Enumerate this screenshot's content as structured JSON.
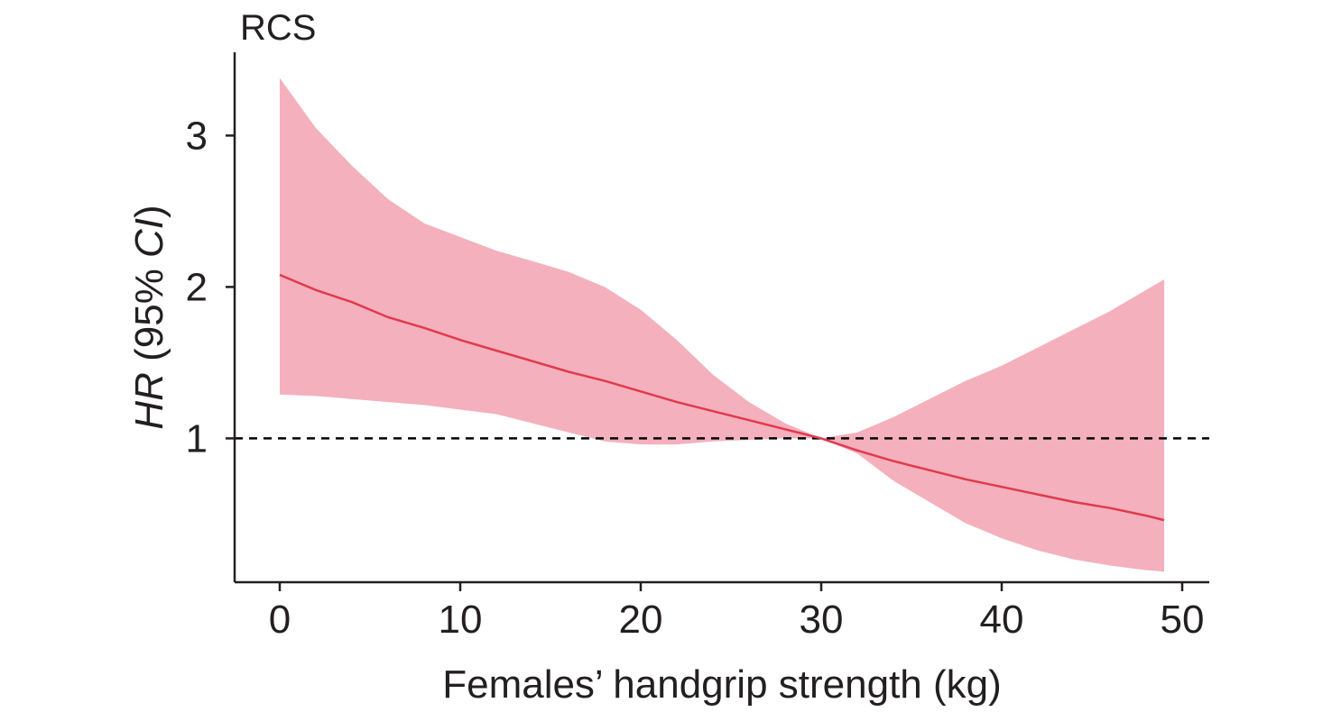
{
  "chart_data": {
    "type": "line",
    "panel_label": "RCS",
    "xlabel": "Females’ handgrip strength (kg)",
    "ylabel": {
      "italic_part": "HR",
      "mid_part": " (95% ",
      "italic_part2": "CI",
      "end_part": ")"
    },
    "xlim": [
      -2.5,
      51.5
    ],
    "ylim": [
      0.05,
      3.55
    ],
    "xticks": [
      "0",
      "10",
      "20",
      "30",
      "40",
      "50"
    ],
    "yticks": [
      "1",
      "2",
      "3"
    ],
    "reference_line": {
      "y": 1,
      "style": "dashed",
      "color": "#000000"
    },
    "colors": {
      "line": "#e03a4e",
      "band": "#f4b0bc",
      "axis": "#231f20"
    },
    "series": [
      {
        "x": [
          0,
          2,
          4,
          6,
          8,
          10,
          12,
          14,
          16,
          18,
          20,
          22,
          24,
          26,
          28,
          30,
          32,
          34,
          36,
          38,
          40,
          42,
          44,
          46,
          48,
          49
        ],
        "hr": [
          2.08,
          1.98,
          1.9,
          1.8,
          1.73,
          1.65,
          1.58,
          1.51,
          1.44,
          1.38,
          1.31,
          1.24,
          1.18,
          1.12,
          1.06,
          1.0,
          0.92,
          0.85,
          0.79,
          0.73,
          0.68,
          0.63,
          0.58,
          0.54,
          0.49,
          0.46
        ],
        "lower": [
          1.29,
          1.28,
          1.26,
          1.24,
          1.22,
          1.19,
          1.16,
          1.1,
          1.04,
          0.98,
          0.96,
          0.96,
          0.98,
          0.99,
          1.0,
          1.0,
          0.9,
          0.72,
          0.58,
          0.44,
          0.34,
          0.26,
          0.2,
          0.16,
          0.13,
          0.12
        ],
        "upper": [
          3.38,
          3.05,
          2.8,
          2.58,
          2.42,
          2.33,
          2.24,
          2.17,
          2.1,
          2.0,
          1.85,
          1.65,
          1.42,
          1.24,
          1.1,
          1.0,
          1.04,
          1.14,
          1.26,
          1.38,
          1.48,
          1.6,
          1.72,
          1.84,
          1.98,
          2.05
        ]
      }
    ]
  }
}
